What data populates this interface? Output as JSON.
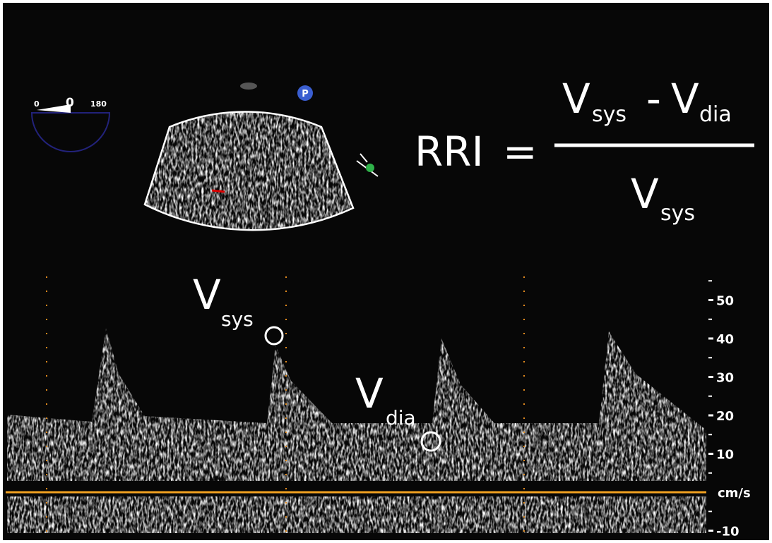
{
  "angle_indicator": {
    "min": "0",
    "value": "0",
    "max": "180"
  },
  "probe_marker": "P",
  "formula": {
    "lhs": "RRI",
    "equals": "=",
    "numerator": {
      "v1": "V",
      "s1": "sys",
      "minus": "-",
      "v2": "V",
      "s2": "dia"
    },
    "denominator": {
      "v": "V",
      "s": "sys"
    }
  },
  "annotations": [
    {
      "v": "V",
      "sub": "sys"
    },
    {
      "v": "V",
      "sub": "dia"
    }
  ],
  "scale": {
    "ticks": [
      50,
      40,
      30,
      20,
      10,
      -10
    ],
    "unit": "cm/s"
  }
}
